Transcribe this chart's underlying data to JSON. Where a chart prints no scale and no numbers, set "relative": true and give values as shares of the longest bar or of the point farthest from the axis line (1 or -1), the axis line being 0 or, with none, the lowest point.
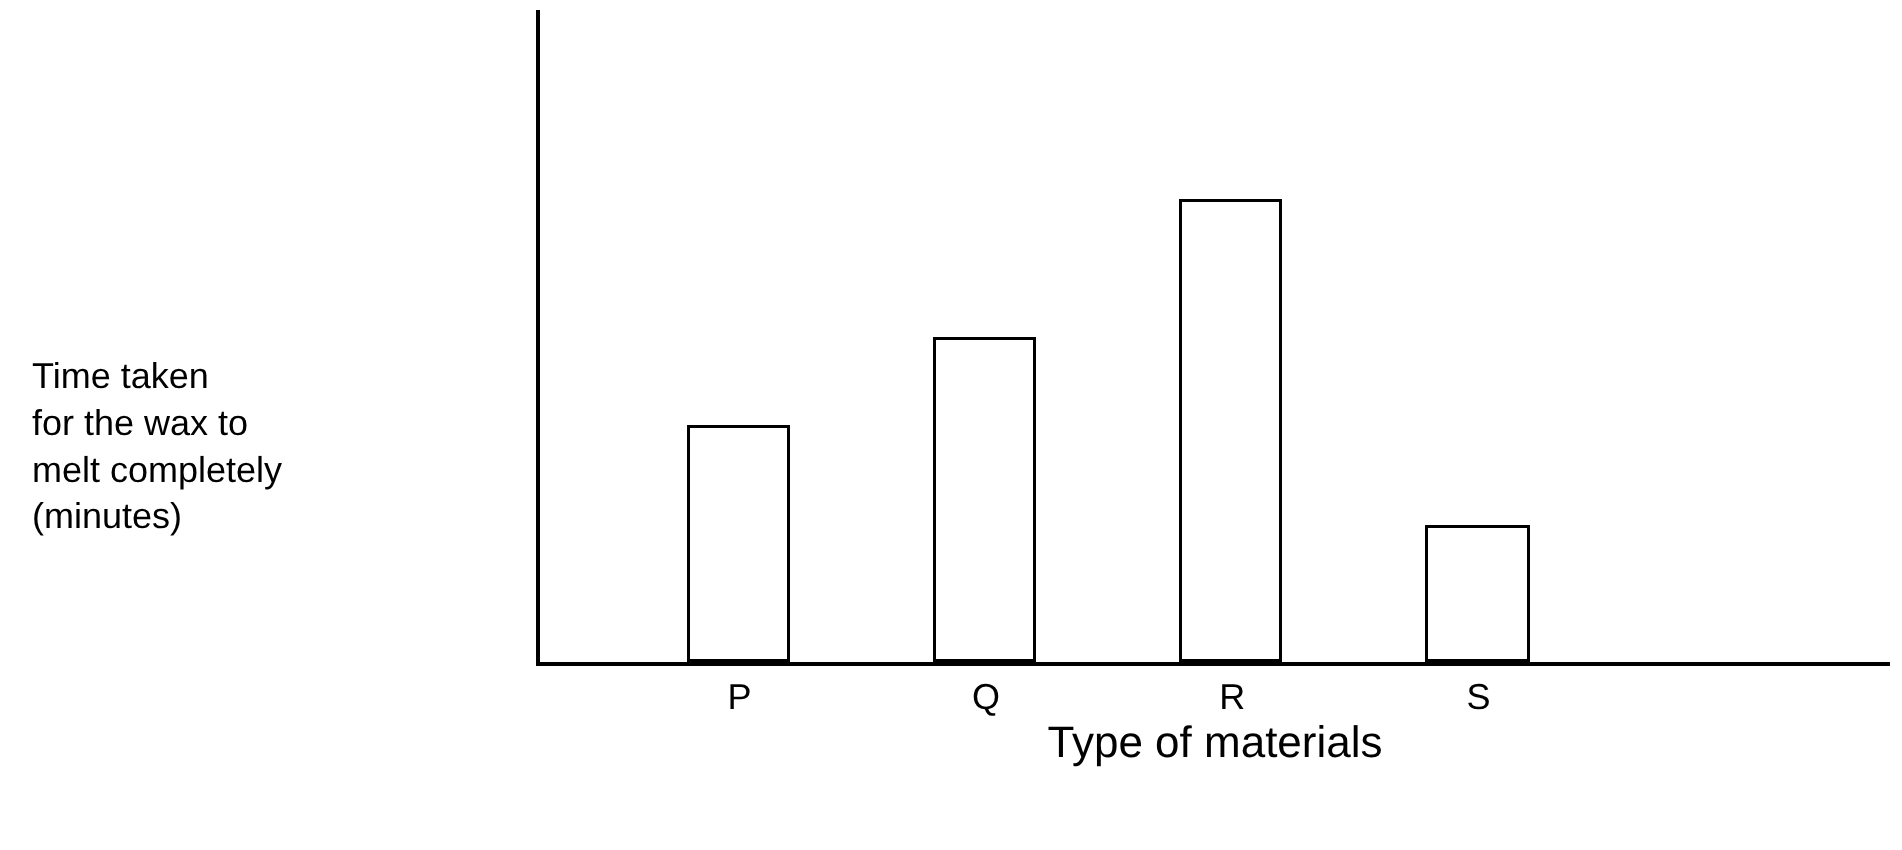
{
  "chart_data": {
    "type": "bar",
    "relative": true,
    "xlabel": "Type of materials",
    "annotations": [
      "Time taken\nfor the wax to\nmelt completely\n(minutes)"
    ],
    "categories": [
      "P",
      "Q",
      "R",
      "S"
    ],
    "series": [
      {
        "color": "#ffffff",
        "values": [
          0.51,
          0.7,
          1,
          0.29
        ]
      }
    ]
  }
}
